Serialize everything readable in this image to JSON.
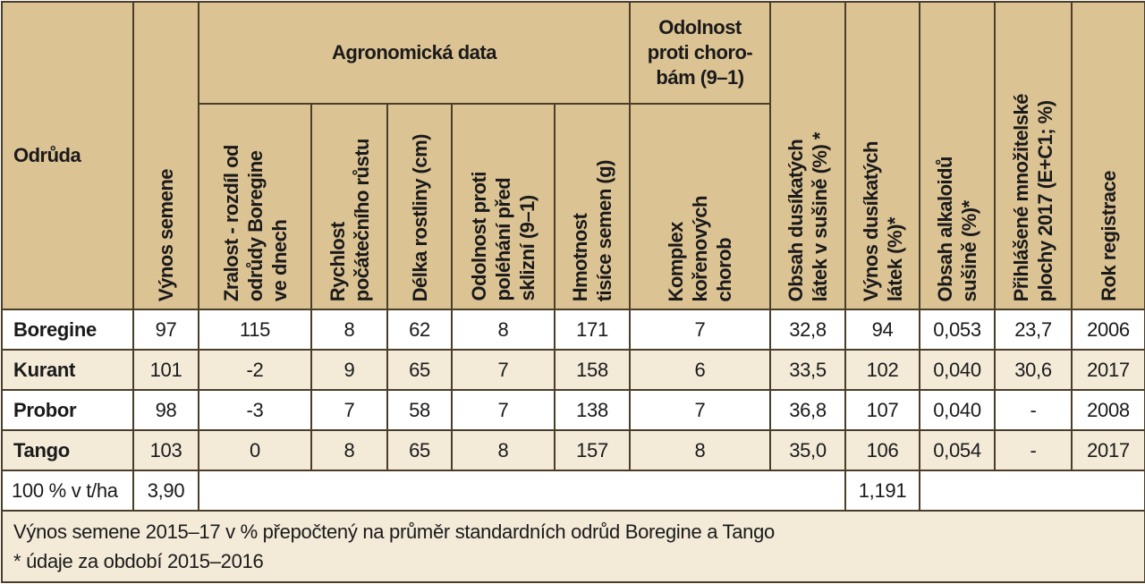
{
  "header": {
    "variety": "Odrůda",
    "seed_yield": "Výnos semene",
    "agronomic_group": "Agronomická data",
    "maturity": [
      "Zralost - rozdíl od",
      "odrůdy Boregine",
      "ve dnech"
    ],
    "early_growth": [
      "Rychlost",
      "počátečního růstu"
    ],
    "plant_length": [
      "Délka rostliny (cm)"
    ],
    "lodging": [
      "Odolnost proti",
      "poléhání před",
      "sklizní (9–1)"
    ],
    "tsw": [
      "Hmotnost",
      "tisíce semen (g)"
    ],
    "disease_group": "Odolnost proti chorobám (9–1)",
    "root_disease": [
      "Komplex",
      "kořenových",
      "chorob"
    ],
    "n_content": [
      "Obsah dusíkatých",
      "látek v sušině (%) *"
    ],
    "n_yield": [
      "Výnos dusíkatých",
      "látek (%)*"
    ],
    "alkaloid": [
      "Obsah alkaloidů",
      "sušině (%)*"
    ],
    "area": [
      "Přihlášené množitelské",
      "plochy 2017 (E+C1; %)"
    ],
    "reg_year": "Rok registrace"
  },
  "rows": [
    {
      "name": "Boregine",
      "vals": [
        "97",
        "115",
        "8",
        "62",
        "8",
        "171",
        "7",
        "32,8",
        "94",
        "0,053",
        "23,7",
        "2006"
      ]
    },
    {
      "name": "Kurant",
      "vals": [
        "101",
        "-2",
        "9",
        "65",
        "7",
        "158",
        "6",
        "33,5",
        "102",
        "0,040",
        "30,6",
        "2017"
      ]
    },
    {
      "name": "Probor",
      "vals": [
        "98",
        "-3",
        "7",
        "58",
        "7",
        "138",
        "7",
        "36,8",
        "107",
        "0,040",
        "-",
        "2008"
      ]
    },
    {
      "name": "Tango",
      "vals": [
        "103",
        "0",
        "8",
        "65",
        "8",
        "157",
        "8",
        "35,0",
        "106",
        "0,054",
        "-",
        "2017"
      ]
    }
  ],
  "base_row": {
    "label": "100 % v t/ha",
    "seed": "3,90",
    "n_yield": "1,191"
  },
  "notes": [
    "Výnos semene 2015–17 v % přepočtený na průměr standardních odrůd Boregine a Tango",
    "* údaje za období 2015–2016"
  ],
  "colors": {
    "header_bg": "#dcc394",
    "row_alt": "#f3ead8",
    "border": "#4a3e2a"
  }
}
